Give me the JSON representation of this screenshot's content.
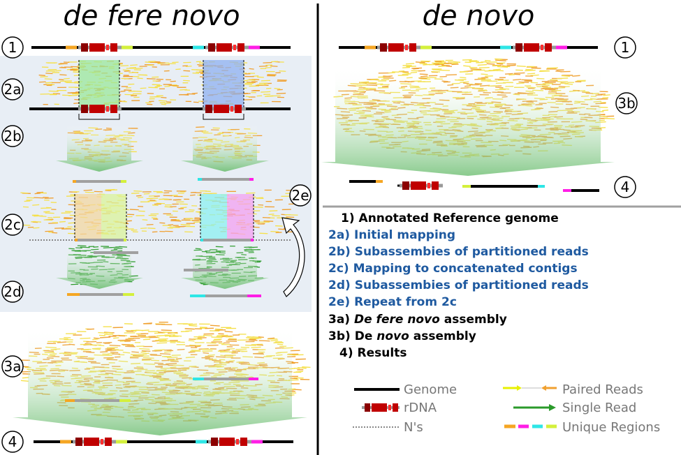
{
  "titles": {
    "left": "de fere novo",
    "right": "de novo"
  },
  "steps": {
    "s1": "1",
    "s2a": "2a",
    "s2b": "2b",
    "s2c": "2c",
    "s2d": "2d",
    "s2e": "2e",
    "s3a": "3a",
    "s3b": "3b",
    "s4": "4"
  },
  "legend": {
    "items": [
      {
        "num": "1)",
        "text": "Annotated Reference genome",
        "color": "#000000"
      },
      {
        "num": "2a)",
        "text": "Initial mapping",
        "color": "#1f5aa0"
      },
      {
        "num": "2b)",
        "text": "Subassembies of partitioned reads",
        "color": "#1f5aa0"
      },
      {
        "num": "2c)",
        "text": "Mapping to concatenated contigs",
        "color": "#1f5aa0"
      },
      {
        "num": "2d)",
        "text": "Subassembies of partitioned reads",
        "color": "#1f5aa0"
      },
      {
        "num": "2e)",
        "text": "Repeat from 2c",
        "color": "#1f5aa0"
      }
    ],
    "item3a": {
      "num": "3a)",
      "italic": "De fere novo",
      "rest": " assembly"
    },
    "item3b": {
      "num": "3b)",
      "pre": "De",
      "italic": " novo",
      "rest": " assembly"
    },
    "item4": {
      "num": "4)",
      "text": "Results"
    }
  },
  "key": {
    "genome": "Genome",
    "rdna": "rDNA",
    "ns": "N's",
    "paired": "Paired Reads",
    "single": "Single Read",
    "unique": "Unique Regions"
  },
  "colors": {
    "rdna": "#c00000",
    "rdna_dark": "#8b0000",
    "orange": "#f5a623",
    "yellowgreen": "#d4f03c",
    "cyan": "#2ee6e6",
    "magenta": "#ff1ee6",
    "read_yellow": "#f5e04a",
    "read_orange": "#f0a030",
    "single_green": "#2a9a2a",
    "panel": "#e8eef5",
    "legend_blue": "#1f5aa0"
  }
}
